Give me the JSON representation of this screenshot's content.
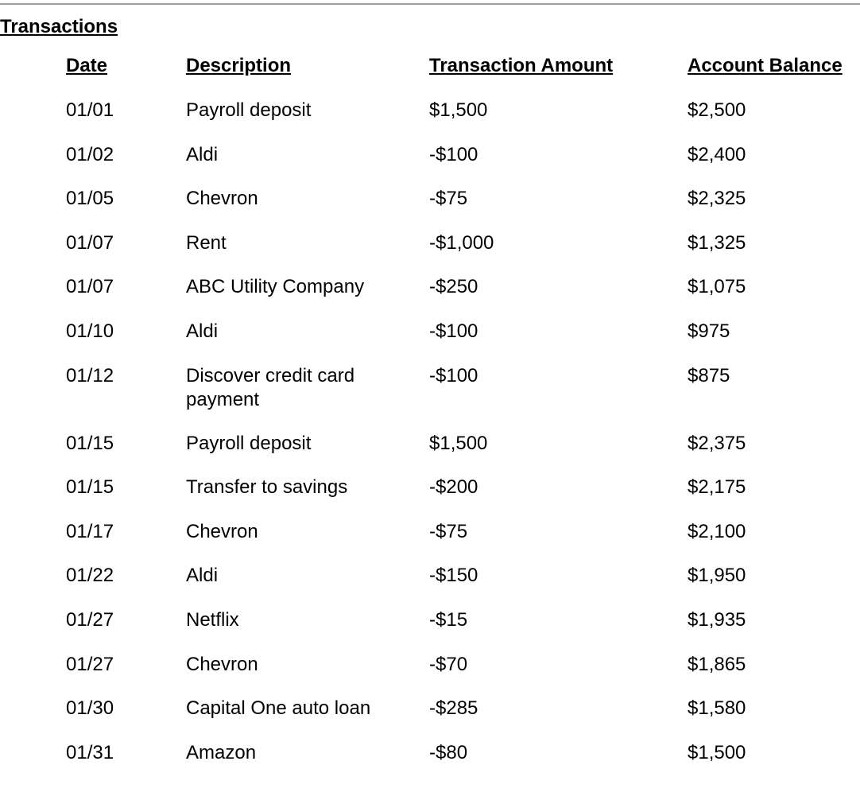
{
  "title": "Transactions",
  "columns": {
    "date": "Date",
    "description": "Description",
    "amount": "Transaction Amount",
    "balance": "Account Balance"
  },
  "rows": [
    {
      "date": "01/01",
      "description": "Payroll deposit",
      "amount": "$1,500",
      "balance": "$2,500"
    },
    {
      "date": "01/02",
      "description": "Aldi",
      "amount": "-$100",
      "balance": "$2,400"
    },
    {
      "date": "01/05",
      "description": "Chevron",
      "amount": "-$75",
      "balance": "$2,325"
    },
    {
      "date": "01/07",
      "description": "Rent",
      "amount": "-$1,000",
      "balance": "$1,325"
    },
    {
      "date": "01/07",
      "description": "ABC Utility Company",
      "amount": "-$250",
      "balance": "$1,075"
    },
    {
      "date": "01/10",
      "description": "Aldi",
      "amount": "-$100",
      "balance": "$975"
    },
    {
      "date": "01/12",
      "description": "Discover credit card payment",
      "amount": "-$100",
      "balance": "$875"
    },
    {
      "date": "01/15",
      "description": "Payroll deposit",
      "amount": "$1,500",
      "balance": "$2,375"
    },
    {
      "date": "01/15",
      "description": "Transfer to savings",
      "amount": "-$200",
      "balance": "$2,175"
    },
    {
      "date": "01/17",
      "description": "Chevron",
      "amount": "-$75",
      "balance": "$2,100"
    },
    {
      "date": "01/22",
      "description": "Aldi",
      "amount": "-$150",
      "balance": "$1,950"
    },
    {
      "date": "01/27",
      "description": "Netflix",
      "amount": "-$15",
      "balance": "$1,935"
    },
    {
      "date": "01/27",
      "description": "Chevron",
      "amount": "-$70",
      "balance": "$1,865"
    },
    {
      "date": "01/30",
      "description": "Capital One auto loan",
      "amount": "-$285",
      "balance": "$1,580"
    },
    {
      "date": "01/31",
      "description": "Amazon",
      "amount": "-$80",
      "balance": "$1,500"
    }
  ]
}
